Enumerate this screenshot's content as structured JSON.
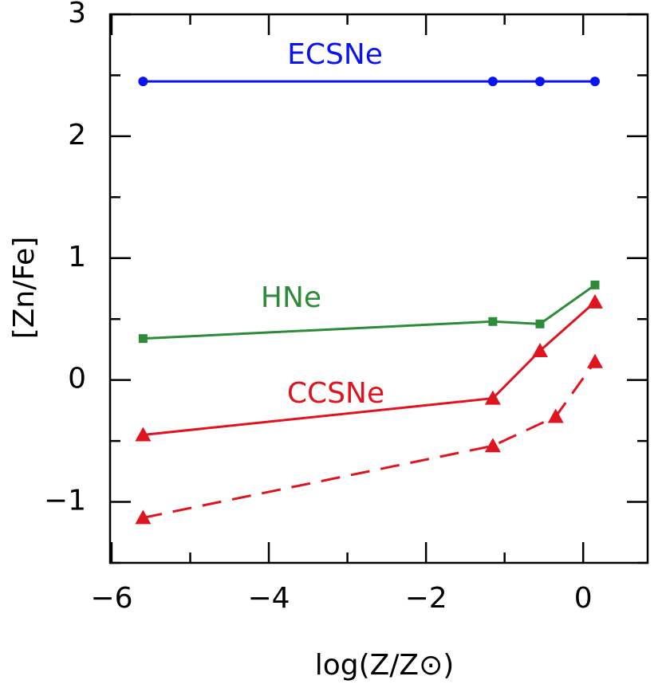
{
  "chart_data": {
    "type": "line",
    "xlabel": "log(Z/Z⊙)",
    "ylabel": "[Zn/Fe]",
    "xlim": [
      -6.02,
      0.82
    ],
    "ylim": [
      -1.5,
      3
    ],
    "xticks": [
      {
        "value": -6,
        "label": "−6"
      },
      {
        "value": -4,
        "label": "−4"
      },
      {
        "value": -2,
        "label": "−2"
      },
      0
    ],
    "xminorticks": [
      -5,
      -3,
      -1
    ],
    "yticks": [
      {
        "value": -1,
        "label": "−1"
      },
      0,
      1,
      2,
      3
    ],
    "yminorticks": [
      -1.5,
      -0.5,
      0.5,
      1.5,
      2.5
    ],
    "series": [
      {
        "name": "ECSNe",
        "color": "#0a14f0",
        "marker": "circle",
        "dash": false,
        "x": [
          -5.6,
          -1.15,
          -0.55,
          0.15
        ],
        "values": [
          2.45,
          2.45,
          2.45,
          2.45
        ]
      },
      {
        "name": "HNe",
        "color": "#2e8b3a",
        "marker": "square",
        "dash": false,
        "x": [
          -5.6,
          -1.15,
          -0.55,
          0.15
        ],
        "values": [
          0.34,
          0.48,
          0.46,
          0.78
        ]
      },
      {
        "name": "CCSNe",
        "color": "#e0141e",
        "marker": "triangle",
        "dash": false,
        "x": [
          -5.6,
          -1.15,
          -0.55,
          0.15
        ],
        "values": [
          -0.45,
          -0.15,
          0.24,
          0.64
        ]
      },
      {
        "color": "#e0141e",
        "marker": "triangle",
        "dash": true,
        "x": [
          -5.6,
          -1.15,
          -0.35,
          0.15
        ],
        "values": [
          -1.13,
          -0.54,
          -0.3,
          0.15
        ]
      }
    ]
  }
}
